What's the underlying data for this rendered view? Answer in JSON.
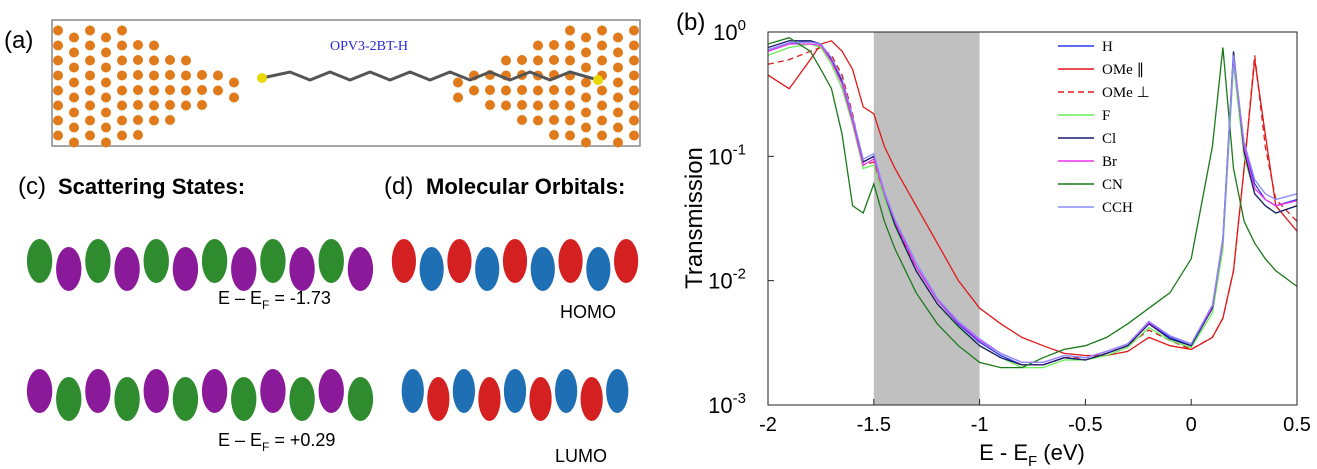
{
  "panel_a": {
    "label": "(a)",
    "molecule": "OPV3-2BT-H"
  },
  "panel_c": {
    "label": "(c)",
    "title": "Scattering States:",
    "states": [
      {
        "prefix": "E – E",
        "sub": "F",
        "suffix": " = -1.73"
      },
      {
        "prefix": "E – E",
        "sub": "F",
        "suffix": " = +0.29"
      }
    ]
  },
  "panel_d": {
    "label": "(d)",
    "title": "Molecular Orbitals:",
    "orbitals": [
      "HOMO",
      "LUMO"
    ]
  },
  "chart_data": {
    "type": "line",
    "panel_label": "(b)",
    "ylabel": "Transmission",
    "xlabel": "E - E",
    "xlabel_sub": "F",
    "xlabel_suffix": " (eV)",
    "log_y": true,
    "shaded_region": [
      -1.5,
      -1
    ],
    "shaded_color": "#c0c0c0",
    "legend": "upper right",
    "xlim": [
      -2,
      0.5
    ],
    "xticks": [
      -2,
      -1.5,
      -1,
      -0.5,
      0,
      0.5
    ],
    "ylim": [
      0.001,
      1
    ],
    "yticks": [
      {
        "value": 0.001,
        "label": "10",
        "exponent": "-3"
      },
      {
        "value": 0.01,
        "label": "10",
        "exponent": "-2"
      },
      {
        "value": 0.1,
        "label": "10",
        "exponent": "-1"
      },
      {
        "value": 1,
        "label": "10",
        "exponent": "0"
      }
    ],
    "x": [
      -2,
      -1.9,
      -1.8,
      -1.75,
      -1.7,
      -1.65,
      -1.6,
      -1.55,
      -1.5,
      -1.45,
      -1.4,
      -1.3,
      -1.2,
      -1.1,
      -1,
      -0.9,
      -0.8,
      -0.7,
      -0.6,
      -0.5,
      -0.4,
      -0.3,
      -0.2,
      -0.1,
      0,
      0.1,
      0.15,
      0.2,
      0.25,
      0.3,
      0.35,
      0.4,
      0.5
    ],
    "series": [
      {
        "name": "H",
        "color": "#2a3cf0",
        "dashed": false,
        "values": [
          0.7,
          0.8,
          0.85,
          0.8,
          0.6,
          0.4,
          0.2,
          0.09,
          0.1,
          0.05,
          0.03,
          0.013,
          0.007,
          0.0045,
          0.0032,
          0.0025,
          0.0021,
          0.0021,
          0.0024,
          0.0023,
          0.0026,
          0.003,
          0.0045,
          0.0035,
          0.003,
          0.006,
          0.02,
          0.6,
          0.12,
          0.06,
          0.045,
          0.04,
          0.045
        ]
      },
      {
        "name": "OMe ∥",
        "color": "#e01818",
        "dashed": false,
        "values": [
          0.45,
          0.35,
          0.6,
          0.8,
          0.85,
          0.7,
          0.5,
          0.25,
          0.22,
          0.12,
          0.08,
          0.04,
          0.02,
          0.01,
          0.006,
          0.0045,
          0.0035,
          0.003,
          0.0026,
          0.0025,
          0.0025,
          0.0027,
          0.0035,
          0.003,
          0.0028,
          0.0035,
          0.005,
          0.012,
          0.08,
          0.6,
          0.15,
          0.04,
          0.025
        ]
      },
      {
        "name": "OMe ⊥",
        "color": "#e01818",
        "dashed": true,
        "values": [
          0.55,
          0.6,
          0.7,
          0.75,
          0.65,
          0.45,
          0.22,
          0.085,
          0.09,
          0.05,
          0.03,
          0.012,
          0.0065,
          0.0042,
          0.003,
          0.0024,
          0.0021,
          0.0021,
          0.0024,
          0.0024,
          0.0026,
          0.003,
          0.004,
          0.0033,
          0.0028,
          0.0035,
          0.005,
          0.012,
          0.08,
          0.65,
          0.12,
          0.045,
          0.03
        ]
      },
      {
        "name": "F",
        "color": "#66ee55",
        "dashed": false,
        "values": [
          0.65,
          0.75,
          0.8,
          0.75,
          0.55,
          0.35,
          0.18,
          0.08,
          0.085,
          0.045,
          0.027,
          0.012,
          0.0065,
          0.0042,
          0.003,
          0.0024,
          0.002,
          0.002,
          0.0023,
          0.0023,
          0.0025,
          0.0029,
          0.0042,
          0.0033,
          0.0029,
          0.0055,
          0.018,
          0.55,
          0.1,
          0.05,
          0.04,
          0.035,
          0.04
        ]
      },
      {
        "name": "Cl",
        "color": "#1a1a6e",
        "dashed": false,
        "values": [
          0.75,
          0.85,
          0.85,
          0.8,
          0.6,
          0.4,
          0.2,
          0.09,
          0.1,
          0.05,
          0.028,
          0.012,
          0.0065,
          0.0043,
          0.003,
          0.0024,
          0.0021,
          0.0021,
          0.0024,
          0.0023,
          0.0026,
          0.003,
          0.0045,
          0.0034,
          0.003,
          0.006,
          0.022,
          0.7,
          0.11,
          0.05,
          0.04,
          0.035,
          0.04
        ]
      },
      {
        "name": "Br",
        "color": "#ee33ee",
        "dashed": false,
        "values": [
          0.7,
          0.8,
          0.8,
          0.78,
          0.58,
          0.38,
          0.19,
          0.085,
          0.095,
          0.05,
          0.03,
          0.013,
          0.007,
          0.0046,
          0.0033,
          0.0026,
          0.0022,
          0.0022,
          0.0025,
          0.0024,
          0.0027,
          0.0031,
          0.0046,
          0.0036,
          0.0031,
          0.0062,
          0.021,
          0.62,
          0.12,
          0.055,
          0.045,
          0.04,
          0.044
        ]
      },
      {
        "name": "CN",
        "color": "#1a7a1a",
        "dashed": false,
        "values": [
          0.8,
          0.9,
          0.7,
          0.5,
          0.35,
          0.15,
          0.04,
          0.035,
          0.06,
          0.03,
          0.018,
          0.008,
          0.0045,
          0.003,
          0.0022,
          0.002,
          0.002,
          0.0024,
          0.0028,
          0.003,
          0.0035,
          0.0045,
          0.006,
          0.008,
          0.015,
          0.12,
          0.75,
          0.08,
          0.03,
          0.02,
          0.015,
          0.012,
          0.009
        ]
      },
      {
        "name": "CCH",
        "color": "#8a8aff",
        "dashed": false,
        "values": [
          0.72,
          0.82,
          0.83,
          0.8,
          0.62,
          0.42,
          0.21,
          0.095,
          0.105,
          0.052,
          0.031,
          0.014,
          0.0072,
          0.0047,
          0.0034,
          0.0026,
          0.0022,
          0.0022,
          0.0025,
          0.0024,
          0.0027,
          0.0031,
          0.0047,
          0.0036,
          0.0031,
          0.0064,
          0.022,
          0.65,
          0.13,
          0.065,
          0.05,
          0.045,
          0.05
        ]
      }
    ]
  }
}
